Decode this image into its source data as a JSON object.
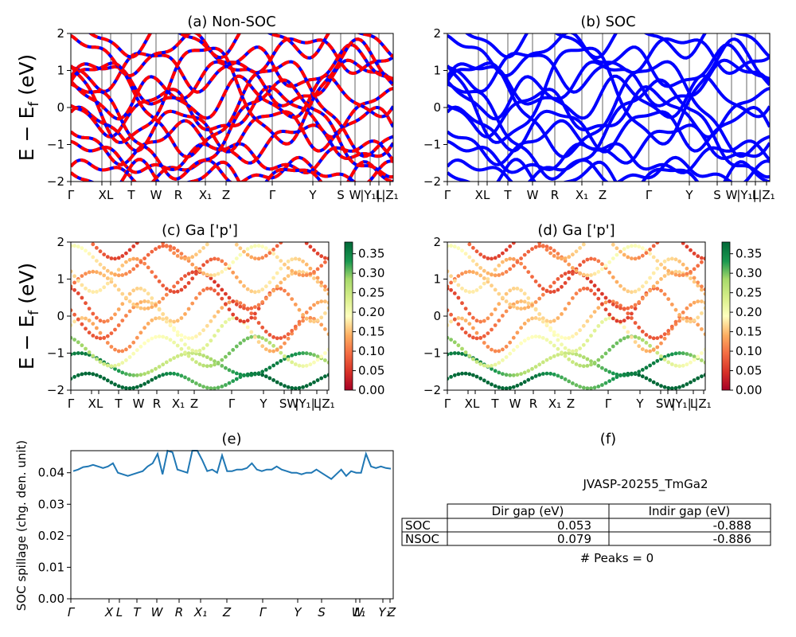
{
  "figure": {
    "title_a": "(a) Non-SOC",
    "title_b": "(b) SOC",
    "title_c": "(c)  Ga ['p']",
    "title_d": "(d) Ga ['p']",
    "title_e": "(e)",
    "title_f": "(f)",
    "ylabel_energy": "E − E_f (eV)",
    "ylabel_spillage": "SOC spillage (chg. den. unit)"
  },
  "kpath": {
    "labels_top": [
      "Γ",
      "XL",
      "T",
      "W",
      "R",
      "X₁",
      "Z",
      "Γ",
      "Y",
      "S",
      "W",
      "|Y₁|",
      "L",
      "|Z₁"
    ],
    "labels_mid": [
      "Γ",
      "XL",
      "T",
      "W",
      "R",
      "X₁",
      "Z",
      "Γ",
      "Y",
      "SW",
      "|Y₁|",
      "L",
      "|Z₁"
    ]
  },
  "chart_data": [
    {
      "id": "a",
      "type": "line",
      "title": "(a) Non-SOC",
      "ylabel": "E − E_f (eV)",
      "ylim": [
        -2,
        2
      ],
      "yticks": [
        -2,
        -1,
        0,
        1,
        2
      ],
      "xtick_labels": [
        "Γ",
        "XL",
        "T",
        "W",
        "R",
        "X₁",
        "Z",
        "Γ",
        "Y",
        "S",
        "W",
        "|Y₁|",
        "L",
        "|Z₁"
      ],
      "series": [
        {
          "color": "#0000ff"
        },
        {
          "color": "#ff0000"
        }
      ]
    },
    {
      "id": "b",
      "type": "line",
      "title": "(b) SOC",
      "ylim": [
        -2,
        2
      ],
      "yticks": [
        -2,
        -1,
        0,
        1,
        2
      ],
      "xtick_labels": [
        "Γ",
        "XL",
        "T",
        "W",
        "R",
        "X₁",
        "Z",
        "Γ",
        "Y",
        "S",
        "W",
        "|Y₁|",
        "L",
        "|Z₁"
      ],
      "series": [
        {
          "color": "#0000ff"
        }
      ]
    },
    {
      "id": "c",
      "type": "scatter",
      "title": "(c)  Ga ['p']",
      "ylabel": "E − E_f (eV)",
      "ylim": [
        -2,
        2
      ],
      "yticks": [
        -2,
        -1,
        0,
        1,
        2
      ],
      "colorbar": {
        "ticks": [
          0.0,
          0.05,
          0.1,
          0.15,
          0.2,
          0.25,
          0.3,
          0.35
        ],
        "range": [
          0,
          0.38
        ],
        "colormap": "RdYlGn"
      }
    },
    {
      "id": "d",
      "type": "scatter",
      "title": "(d) Ga ['p']",
      "ylim": [
        -2,
        2
      ],
      "yticks": [
        -2,
        -1,
        0,
        1,
        2
      ],
      "colorbar": {
        "ticks": [
          0.0,
          0.05,
          0.1,
          0.15,
          0.2,
          0.25,
          0.3,
          0.35
        ],
        "range": [
          0,
          0.38
        ],
        "colormap": "RdYlGn"
      }
    },
    {
      "id": "e",
      "type": "line",
      "title": "(e)",
      "ylabel": "SOC spillage (chg. den. unit)",
      "ylim": [
        0,
        0.047
      ],
      "yticks": [
        0.0,
        0.01,
        0.02,
        0.03,
        0.04
      ],
      "xtick_labels": [
        "Γ",
        "X",
        "L",
        "T",
        "W",
        "R",
        "X₁",
        "Z",
        "Γ",
        "Y",
        "S",
        "W",
        "L₁",
        "Y₁",
        "Z"
      ],
      "color": "#1f77b4",
      "y": [
        0.0405,
        0.041,
        0.0418,
        0.042,
        0.0425,
        0.042,
        0.0415,
        0.042,
        0.043,
        0.04,
        0.0395,
        0.039,
        0.0395,
        0.04,
        0.0405,
        0.042,
        0.043,
        0.046,
        0.0395,
        0.047,
        0.0465,
        0.041,
        0.0405,
        0.04,
        0.047,
        0.047,
        0.044,
        0.0405,
        0.041,
        0.04,
        0.0455,
        0.0405,
        0.0405,
        0.041,
        0.041,
        0.0415,
        0.043,
        0.041,
        0.0405,
        0.041,
        0.041,
        0.042,
        0.041,
        0.0405,
        0.04,
        0.04,
        0.0395,
        0.04,
        0.04,
        0.041,
        0.04,
        0.039,
        0.038,
        0.0395,
        0.041,
        0.039,
        0.0405,
        0.04,
        0.04,
        0.046,
        0.042,
        0.0415,
        0.042,
        0.0415,
        0.0413
      ]
    }
  ],
  "table": {
    "material": "JVASP-20255_TmGa2",
    "columns": [
      "Dir gap (eV)",
      "Indir gap (eV)"
    ],
    "rows": [
      {
        "label": "SOC",
        "dir": "0.053",
        "indir": "-0.888"
      },
      {
        "label": "NSOC",
        "dir": "0.079",
        "indir": "-0.886"
      }
    ],
    "peaks": "# Peaks = 0"
  }
}
